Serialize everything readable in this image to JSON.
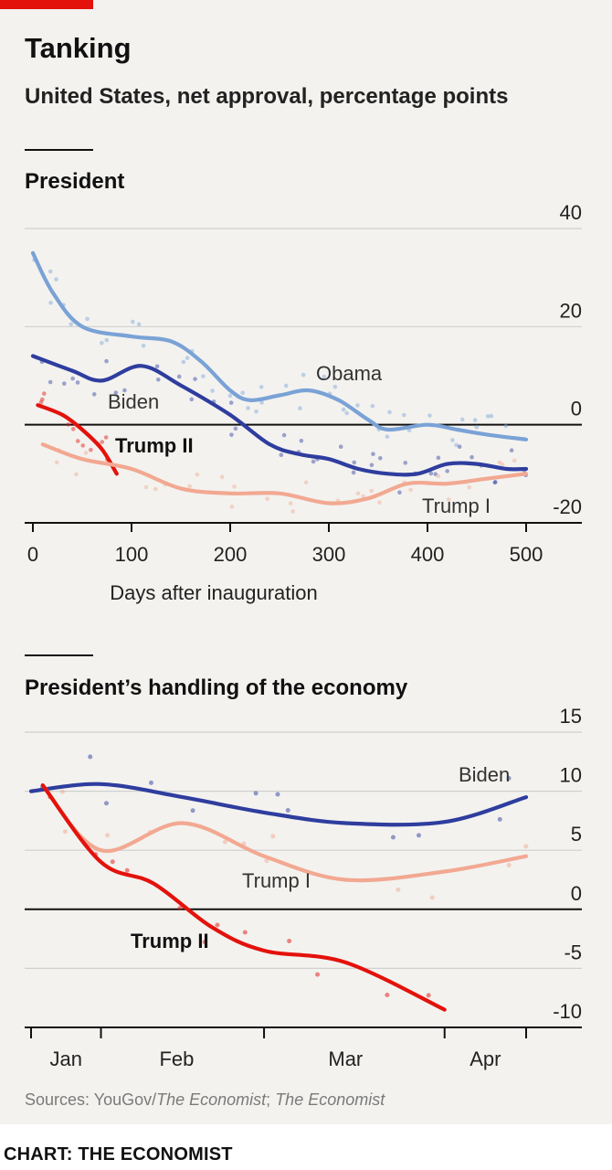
{
  "header": {
    "title": "Tanking",
    "subtitle": "United States, net approval, percentage points",
    "accent_color": "#e3120b"
  },
  "footer": {
    "sources_prefix": "Sources: YouGov/",
    "sources_italic1": "The Economist",
    "sources_sep": "; ",
    "sources_italic2": "The Economist",
    "credit": "CHART: THE ECONOMIST"
  },
  "chart_data": [
    {
      "type": "line",
      "title": "President",
      "xlabel": "Days after inauguration",
      "ylabel": "",
      "xlim": [
        0,
        500
      ],
      "ylim": [
        -20,
        40
      ],
      "x_ticks": [
        0,
        100,
        200,
        300,
        400,
        500
      ],
      "y_ticks": [
        40,
        20,
        0,
        -20
      ],
      "grid": true,
      "series": [
        {
          "name": "Obama",
          "color": "#7aa2d6",
          "x": [
            0,
            20,
            50,
            100,
            140,
            170,
            200,
            220,
            250,
            280,
            310,
            340,
            360,
            400,
            430,
            460,
            500
          ],
          "values": [
            35,
            27,
            20,
            18,
            17,
            13,
            7,
            5,
            6,
            7,
            5,
            1,
            -1,
            0,
            -1,
            -2,
            -3
          ]
        },
        {
          "name": "Biden",
          "color": "#2e3d9e",
          "x": [
            0,
            40,
            70,
            110,
            150,
            200,
            240,
            270,
            300,
            330,
            360,
            390,
            420,
            450,
            480,
            500
          ],
          "values": [
            14,
            11,
            9,
            12,
            8,
            2,
            -4,
            -6,
            -7,
            -9,
            -10,
            -10,
            -8,
            -8,
            -9,
            -9
          ]
        },
        {
          "name": "Trump II",
          "color": "#e3120b",
          "x": [
            5,
            30,
            50,
            70,
            85
          ],
          "values": [
            4,
            2,
            -1,
            -5,
            -10
          ]
        },
        {
          "name": "Trump I",
          "color": "#f2a891",
          "x": [
            10,
            50,
            100,
            150,
            200,
            250,
            300,
            340,
            380,
            420,
            460,
            500
          ],
          "values": [
            -4,
            -7,
            -9,
            -13,
            -14,
            -14,
            -16,
            -15,
            -12,
            -12,
            -11,
            -10
          ]
        }
      ]
    },
    {
      "type": "line",
      "title": "President’s handling of the economy",
      "xlabel": "",
      "ylabel": "",
      "ylim": [
        -10,
        15
      ],
      "x_ticks": [
        "Jan",
        "Feb",
        "Mar",
        "Apr"
      ],
      "y_ticks": [
        15,
        10,
        5,
        0,
        -5,
        -10
      ],
      "grid": true,
      "series": [
        {
          "name": "Biden",
          "color": "#2e3d9e",
          "x": [
            "Jan 20",
            "Feb 1",
            "Feb 15",
            "Mar 1",
            "Mar 15",
            "Apr 1",
            "Apr 15"
          ],
          "values": [
            10,
            10.6,
            9.5,
            8.2,
            7.3,
            7.4,
            9.5
          ]
        },
        {
          "name": "Trump I",
          "color": "#f2a891",
          "x": [
            "Jan 22",
            "Feb 1",
            "Feb 15",
            "Mar 1",
            "Mar 15",
            "Apr 1",
            "Apr 15"
          ],
          "values": [
            10.5,
            5,
            7.3,
            4.5,
            2.5,
            3.2,
            4.5
          ]
        },
        {
          "name": "Trump II",
          "color": "#e3120b",
          "x": [
            "Jan 22",
            "Feb 1",
            "Feb 10",
            "Feb 20",
            "Mar 1",
            "Mar 15",
            "Apr 1"
          ],
          "values": [
            10.5,
            4,
            2.2,
            -1.5,
            -3.5,
            -4.5,
            -8.5
          ]
        }
      ]
    }
  ]
}
